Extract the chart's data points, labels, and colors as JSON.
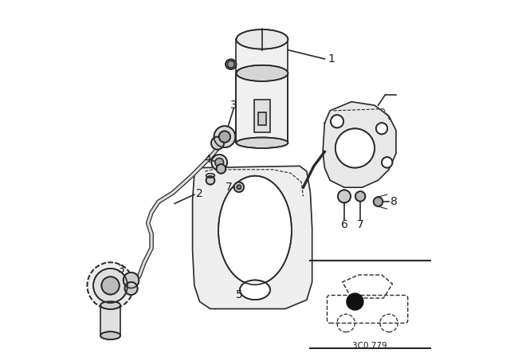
{
  "title": "",
  "bg_color": "#ffffff",
  "line_color": "#2a2a2a",
  "label_color": "#1a1a1a",
  "fig_width": 6.4,
  "fig_height": 4.48,
  "dpi": 100,
  "diagram_code_ref": "3C0 779"
}
